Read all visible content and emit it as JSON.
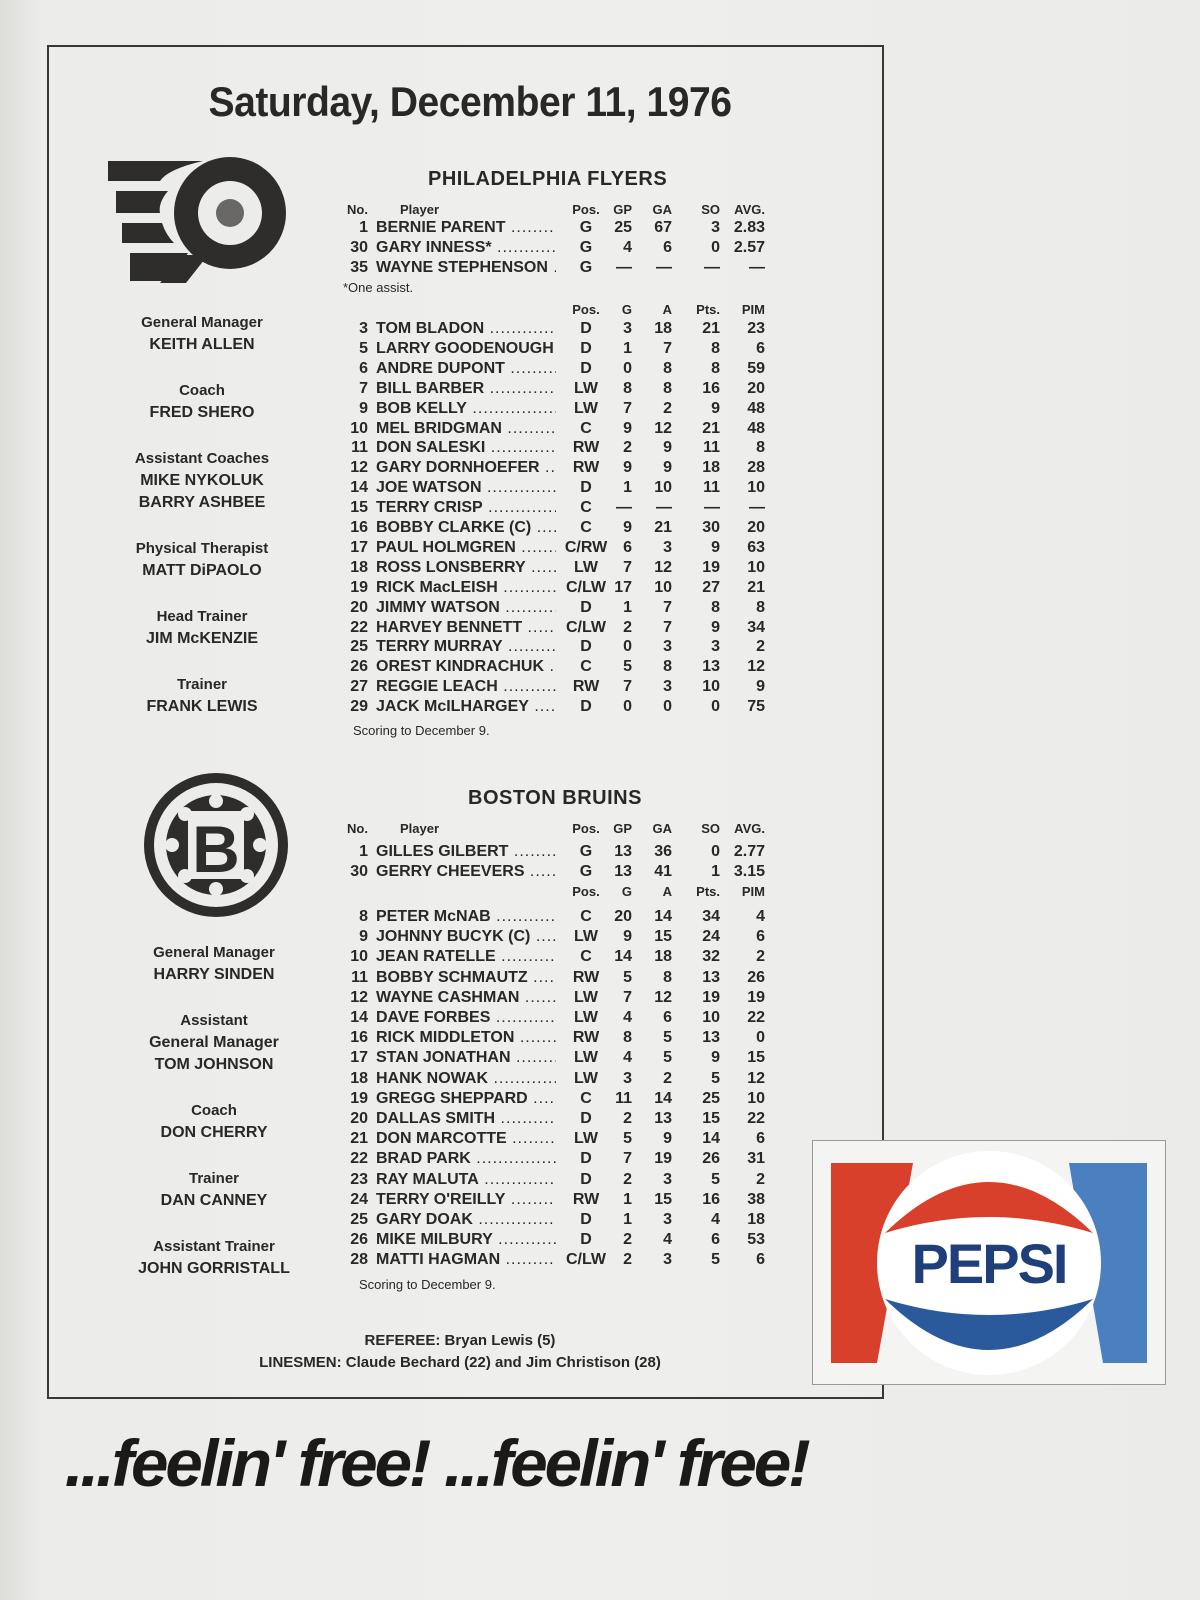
{
  "title": "Saturday, December 11, 1976",
  "flyers": {
    "team_name": "PHILADELPHIA FLYERS",
    "goalie_headers": [
      "No.",
      "Player",
      "Pos.",
      "GP",
      "GA",
      "SO",
      "AVG."
    ],
    "goalies": [
      [
        "1",
        "BERNIE PARENT",
        "G",
        "25",
        "67",
        "3",
        "2.83"
      ],
      [
        "30",
        "GARY INNESS*",
        "G",
        "4",
        "6",
        "0",
        "2.57"
      ],
      [
        "35",
        "WAYNE STEPHENSON",
        "G",
        "—",
        "—",
        "—",
        "—"
      ]
    ],
    "goalie_note": "*One assist.",
    "skater_headers": [
      "Pos.",
      "G",
      "A",
      "Pts.",
      "PIM"
    ],
    "skaters": [
      [
        "3",
        "TOM BLADON",
        "D",
        "3",
        "18",
        "21",
        "23"
      ],
      [
        "5",
        "LARRY GOODENOUGH",
        "D",
        "1",
        "7",
        "8",
        "6"
      ],
      [
        "6",
        "ANDRE DUPONT",
        "D",
        "0",
        "8",
        "8",
        "59"
      ],
      [
        "7",
        "BILL BARBER",
        "LW",
        "8",
        "8",
        "16",
        "20"
      ],
      [
        "9",
        "BOB KELLY",
        "LW",
        "7",
        "2",
        "9",
        "48"
      ],
      [
        "10",
        "MEL BRIDGMAN",
        "C",
        "9",
        "12",
        "21",
        "48"
      ],
      [
        "11",
        "DON SALESKI",
        "RW",
        "2",
        "9",
        "11",
        "8"
      ],
      [
        "12",
        "GARY DORNHOEFER",
        "RW",
        "9",
        "9",
        "18",
        "28"
      ],
      [
        "14",
        "JOE WATSON",
        "D",
        "1",
        "10",
        "11",
        "10"
      ],
      [
        "15",
        "TERRY CRISP",
        "C",
        "—",
        "—",
        "—",
        "—"
      ],
      [
        "16",
        "BOBBY CLARKE (C)",
        "C",
        "9",
        "21",
        "30",
        "20"
      ],
      [
        "17",
        "PAUL HOLMGREN",
        "C/RW",
        "6",
        "3",
        "9",
        "63"
      ],
      [
        "18",
        "ROSS LONSBERRY",
        "LW",
        "7",
        "12",
        "19",
        "10"
      ],
      [
        "19",
        "RICK MacLEISH",
        "C/LW",
        "17",
        "10",
        "27",
        "21"
      ],
      [
        "20",
        "JIMMY WATSON",
        "D",
        "1",
        "7",
        "8",
        "8"
      ],
      [
        "22",
        "HARVEY BENNETT",
        "C/LW",
        "2",
        "7",
        "9",
        "34"
      ],
      [
        "25",
        "TERRY MURRAY",
        "D",
        "0",
        "3",
        "3",
        "2"
      ],
      [
        "26",
        "OREST KINDRACHUK",
        "C",
        "5",
        "8",
        "13",
        "12"
      ],
      [
        "27",
        "REGGIE LEACH",
        "RW",
        "7",
        "3",
        "10",
        "9"
      ],
      [
        "29",
        "JACK McILHARGEY",
        "D",
        "0",
        "0",
        "0",
        "75"
      ]
    ],
    "scoring_note": "Scoring to December 9.",
    "staff": [
      {
        "role": "General Manager",
        "names": [
          "KEITH ALLEN"
        ]
      },
      {
        "role": "Coach",
        "names": [
          "FRED SHERO"
        ]
      },
      {
        "role": "Assistant Coaches",
        "names": [
          "MIKE NYKOLUK",
          "BARRY ASHBEE"
        ]
      },
      {
        "role": "Physical Therapist",
        "names": [
          "MATT DiPAOLO"
        ]
      },
      {
        "role": "Head Trainer",
        "names": [
          "JIM McKENZIE"
        ]
      },
      {
        "role": "Trainer",
        "names": [
          "FRANK LEWIS"
        ]
      }
    ]
  },
  "bruins": {
    "team_name": "BOSTON BRUINS",
    "goalie_headers": [
      "No.",
      "Player",
      "Pos.",
      "GP",
      "GA",
      "SO",
      "AVG."
    ],
    "goalies": [
      [
        "1",
        "GILLES GILBERT",
        "G",
        "13",
        "36",
        "0",
        "2.77"
      ],
      [
        "30",
        "GERRY CHEEVERS",
        "G",
        "13",
        "41",
        "1",
        "3.15"
      ]
    ],
    "skater_headers": [
      "Pos.",
      "G",
      "A",
      "Pts.",
      "PIM"
    ],
    "skaters": [
      [
        "8",
        "PETER McNAB",
        "C",
        "20",
        "14",
        "34",
        "4"
      ],
      [
        "9",
        "JOHNNY BUCYK (C)",
        "LW",
        "9",
        "15",
        "24",
        "6"
      ],
      [
        "10",
        "JEAN RATELLE",
        "C",
        "14",
        "18",
        "32",
        "2"
      ],
      [
        "11",
        "BOBBY SCHMAUTZ",
        "RW",
        "5",
        "8",
        "13",
        "26"
      ],
      [
        "12",
        "WAYNE CASHMAN",
        "LW",
        "7",
        "12",
        "19",
        "19"
      ],
      [
        "14",
        "DAVE FORBES",
        "LW",
        "4",
        "6",
        "10",
        "22"
      ],
      [
        "16",
        "RICK MIDDLETON",
        "RW",
        "8",
        "5",
        "13",
        "0"
      ],
      [
        "17",
        "STAN JONATHAN",
        "LW",
        "4",
        "5",
        "9",
        "15"
      ],
      [
        "18",
        "HANK NOWAK",
        "LW",
        "3",
        "2",
        "5",
        "12"
      ],
      [
        "19",
        "GREGG SHEPPARD",
        "C",
        "11",
        "14",
        "25",
        "10"
      ],
      [
        "20",
        "DALLAS SMITH",
        "D",
        "2",
        "13",
        "15",
        "22"
      ],
      [
        "21",
        "DON MARCOTTE",
        "LW",
        "5",
        "9",
        "14",
        "6"
      ],
      [
        "22",
        "BRAD PARK",
        "D",
        "7",
        "19",
        "26",
        "31"
      ],
      [
        "23",
        "RAY MALUTA",
        "D",
        "2",
        "3",
        "5",
        "2"
      ],
      [
        "24",
        "TERRY O'REILLY",
        "RW",
        "1",
        "15",
        "16",
        "38"
      ],
      [
        "25",
        "GARY DOAK",
        "D",
        "1",
        "3",
        "4",
        "18"
      ],
      [
        "26",
        "MIKE MILBURY",
        "D",
        "2",
        "4",
        "6",
        "53"
      ],
      [
        "28",
        "MATTI HAGMAN",
        "C/LW",
        "2",
        "3",
        "5",
        "6"
      ]
    ],
    "scoring_note": "Scoring to December 9.",
    "staff": [
      {
        "role": "General Manager",
        "names": [
          "HARRY SINDEN"
        ]
      },
      {
        "role": "Assistant",
        "names": [
          "General Manager",
          "TOM JOHNSON"
        ]
      },
      {
        "role": "Coach",
        "names": [
          "DON CHERRY"
        ]
      },
      {
        "role": "Trainer",
        "names": [
          "DAN CANNEY"
        ]
      },
      {
        "role": "Assistant Trainer",
        "names": [
          "JOHN GORRISTALL"
        ]
      }
    ]
  },
  "officials": {
    "referee": "REFEREE: Bryan Lewis (5)",
    "linesmen": "LINESMEN: Claude Bechard (22) and Jim Christison (28)"
  },
  "ad": {
    "brand": "PEPSI",
    "slogan": "...feelin' free! ...feelin' free!",
    "colors": {
      "red": "#d8402c",
      "blue": "#2a5a9c",
      "navy": "#1f3f7a"
    }
  }
}
